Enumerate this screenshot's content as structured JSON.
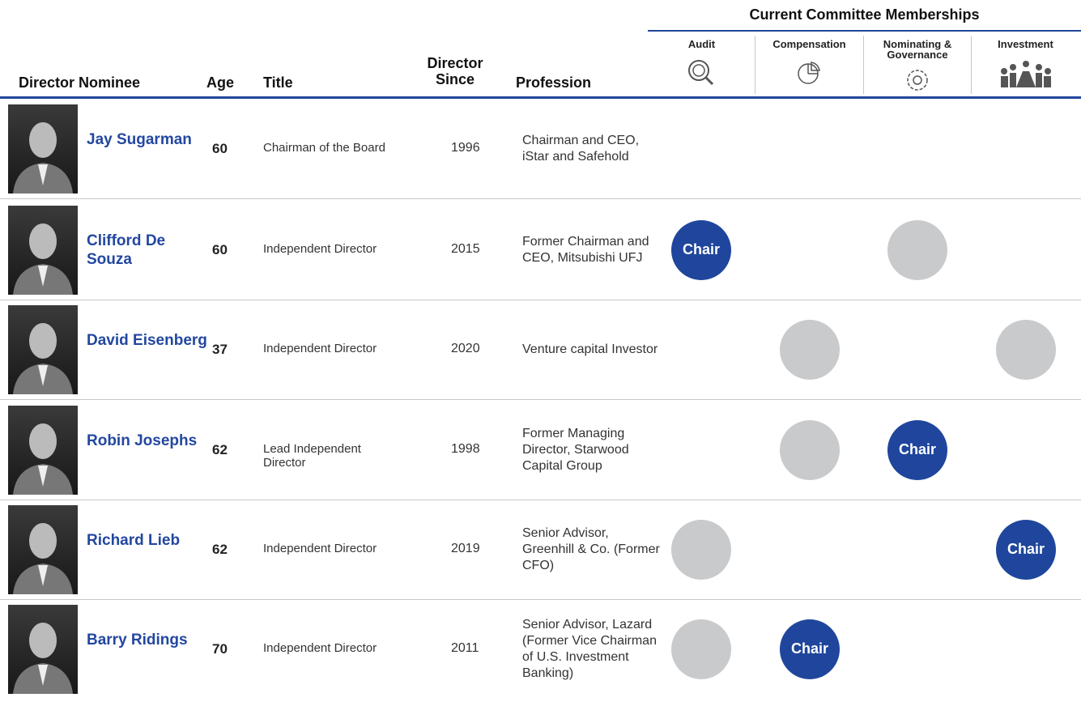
{
  "header": {
    "group_title": "Current Committee Memberships",
    "columns": [
      "Director Nominee",
      "Age",
      "Title",
      "Director Since",
      "Profession"
    ],
    "committees": [
      "Audit",
      "Compensation",
      "Nominating & Governance",
      "Investment"
    ]
  },
  "rows": [
    {
      "name": "Jay Sugarman",
      "age": 60,
      "title": "Chairman of the Board",
      "since": 1996,
      "profession": "Chairman and CEO, iStar and Safehold",
      "committees": [
        null,
        null,
        null,
        null
      ]
    },
    {
      "name": "Clifford De Souza",
      "age": 60,
      "title": "Independent Director",
      "since": 2015,
      "profession": "Former Chairman and CEO, Mitsubishi UFJ",
      "committees": [
        "Chair",
        null,
        true,
        null
      ]
    },
    {
      "name": "David Eisenberg",
      "age": 37,
      "title": "Independent Director",
      "since": 2020,
      "profession": "Venture capital Investor",
      "committees": [
        null,
        true,
        null,
        true
      ]
    },
    {
      "name": "Robin Josephs",
      "age": 62,
      "title": "Lead Independent Director",
      "since": 1998,
      "profession": "Former Managing Director, Starwood Capital Group",
      "committees": [
        null,
        true,
        "Chair",
        null
      ]
    },
    {
      "name": "Richard Lieb",
      "age": 62,
      "title": "Independent Director",
      "since": 2019,
      "profession": "Senior Advisor, Greenhill & Co. (Former CFO)",
      "committees": [
        true,
        null,
        null,
        "Chair"
      ]
    },
    {
      "name": "Barry Ridings",
      "age": 70,
      "title": "Independent Director",
      "since": 2011,
      "profession": "Senior Advisor, Lazard (Former Vice Chairman of U.S. Investment Banking)",
      "committees": [
        true,
        "Chair",
        null,
        null
      ]
    }
  ]
}
